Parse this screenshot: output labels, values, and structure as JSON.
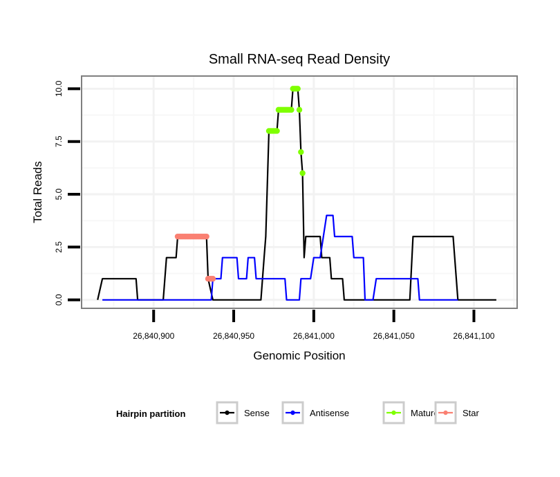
{
  "chart_data": {
    "type": "line",
    "title": "Small RNA-seq Read Density",
    "xlabel": "Genomic Position",
    "ylabel": "Total Reads",
    "xlim": [
      26840855,
      26841127
    ],
    "ylim": [
      -0.4,
      10.6
    ],
    "x_ticks": [
      26840900,
      26840950,
      26841000,
      26841050,
      26841100
    ],
    "x_tick_labels": [
      "26,840,900",
      "26,840,950",
      "26,841,000",
      "26,841,050",
      "26,841,100"
    ],
    "y_ticks": [
      0,
      2.5,
      5,
      7.5,
      10
    ],
    "y_tick_labels": [
      "0.0",
      "2.5",
      "5.0",
      "7.5",
      "10.0"
    ],
    "grid": true,
    "legend": {
      "title": "Hairpin partition",
      "placement": "bottom",
      "entries": [
        {
          "label": "Sense",
          "color": "#000000"
        },
        {
          "label": "Antisense",
          "color": "#0000ff"
        },
        {
          "label": "Mature",
          "color": "#7fff00"
        },
        {
          "label": "Star",
          "color": "#fa8072"
        }
      ]
    },
    "series": [
      {
        "name": "Sense",
        "color": "#000000",
        "style": "line",
        "x": [
          26840865,
          26840868,
          26840889,
          26840890,
          26840906,
          26840908,
          26840914,
          26840915,
          26840933,
          26840934,
          26840937,
          26840967,
          26840969,
          26840970,
          26840972,
          26840977,
          26840978,
          26840986,
          26840987,
          26840990,
          26840991,
          26840992,
          26840993,
          26840994,
          26840995,
          26841004,
          26841005,
          26841010,
          26841011,
          26841018,
          26841019,
          26841060,
          26841062,
          26841087,
          26841088,
          26841090,
          26841114
        ],
        "y": [
          0,
          1,
          1,
          0,
          0,
          2,
          2,
          3,
          3,
          1,
          0,
          0,
          2,
          3,
          8,
          8,
          9,
          9,
          10,
          10,
          9,
          7,
          6,
          2,
          3,
          3,
          2,
          2,
          1,
          1,
          0,
          0,
          3,
          3,
          2,
          0,
          0
        ]
      },
      {
        "name": "Antisense",
        "color": "#0000ff",
        "style": "line",
        "x": [
          26840868,
          26840936,
          26840937,
          26840942,
          26840943,
          26840952,
          26840953,
          26840958,
          26840959,
          26840963,
          26840964,
          26840982,
          26840983,
          26840991,
          26840992,
          26840998,
          26841000,
          26841004,
          26841008,
          26841012,
          26841013,
          26841024,
          26841025,
          26841031,
          26841032,
          26841037,
          26841039,
          26841065,
          26841066,
          26841090
        ],
        "y": [
          0,
          0,
          1,
          1,
          2,
          2,
          1,
          1,
          2,
          2,
          1,
          1,
          0,
          0,
          1,
          1,
          2,
          2,
          4,
          4,
          3,
          3,
          2,
          2,
          0,
          0,
          1,
          1,
          0,
          0
        ]
      },
      {
        "name": "Mature",
        "color": "#7fff00",
        "style": "points",
        "x": [
          26840972,
          26840973,
          26840974,
          26840975,
          26840976,
          26840977,
          26840978,
          26840979,
          26840980,
          26840981,
          26840982,
          26840983,
          26840984,
          26840985,
          26840986,
          26840987,
          26840988,
          26840989,
          26840990,
          26840991,
          26840992,
          26840993
        ],
        "y": [
          8,
          8,
          8,
          8,
          8,
          8,
          9,
          9,
          9,
          9,
          9,
          9,
          9,
          9,
          9,
          10,
          10,
          10,
          10,
          9,
          7,
          6
        ]
      },
      {
        "name": "Star",
        "color": "#fa8072",
        "style": "points",
        "x": [
          26840915,
          26840916,
          26840917,
          26840918,
          26840919,
          26840920,
          26840921,
          26840922,
          26840923,
          26840924,
          26840925,
          26840926,
          26840927,
          26840928,
          26840929,
          26840930,
          26840931,
          26840932,
          26840933,
          26840934,
          26840935,
          26840936,
          26840937
        ],
        "y": [
          3,
          3,
          3,
          3,
          3,
          3,
          3,
          3,
          3,
          3,
          3,
          3,
          3,
          3,
          3,
          3,
          3,
          3,
          3,
          1,
          1,
          1,
          1
        ]
      }
    ]
  }
}
